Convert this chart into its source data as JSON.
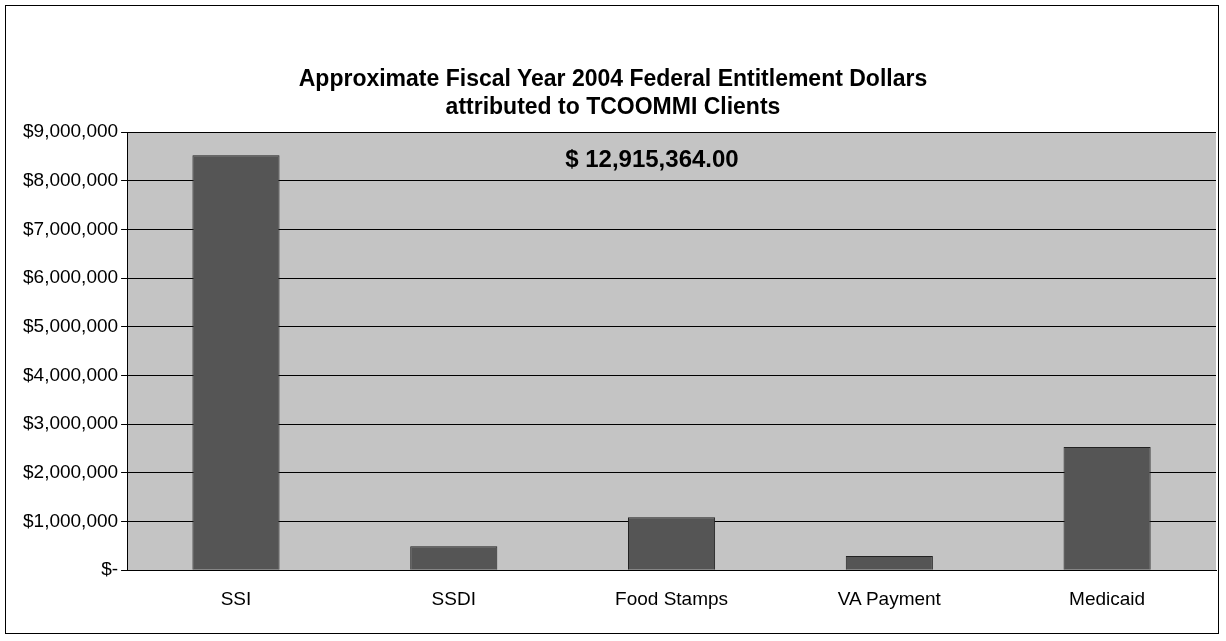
{
  "chart_data": {
    "type": "bar",
    "title": "Approximate Fiscal Year 2004 Federal Entitlement Dollars attributed to TCOOMMI Clients",
    "categories": [
      "SSI",
      "SSDI",
      "Food Stamps",
      "VA Payment",
      "Medicaid"
    ],
    "values": [
      8520000,
      490000,
      1090000,
      290000,
      2530000
    ],
    "color": "#555555",
    "ylim": [
      0,
      9000000
    ],
    "yticks": [
      {
        "value": 0,
        "label": "$-"
      },
      {
        "value": 1000000,
        "label": "$1,000,000"
      },
      {
        "value": 2000000,
        "label": "$2,000,000"
      },
      {
        "value": 3000000,
        "label": "$3,000,000"
      },
      {
        "value": 4000000,
        "label": "$4,000,000"
      },
      {
        "value": 5000000,
        "label": "$5,000,000"
      },
      {
        "value": 6000000,
        "label": "$6,000,000"
      },
      {
        "value": 7000000,
        "label": "$7,000,000"
      },
      {
        "value": 8000000,
        "label": "$8,000,000"
      },
      {
        "value": 9000000,
        "label": "$9,000,000"
      }
    ],
    "grid": "y",
    "annotations": [
      "$ 12,915,364.00"
    ]
  }
}
